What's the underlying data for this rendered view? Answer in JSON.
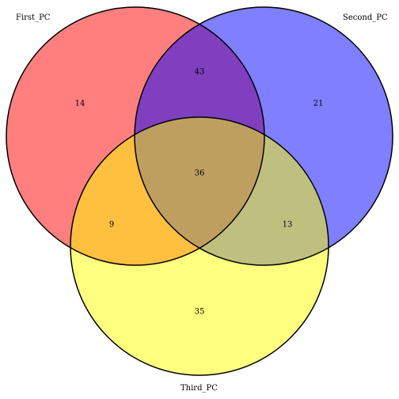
{
  "diagram_type": "venn",
  "sets": [
    {
      "id": "first",
      "name": "First_PC",
      "color": "#ff0000"
    },
    {
      "id": "second",
      "name": "Second_PC",
      "color": "#0000ff"
    },
    {
      "id": "third",
      "name": "Third_PC",
      "color": "#ffff00"
    }
  ],
  "regions": {
    "first_only": "14",
    "second_only": "21",
    "third_only": "35",
    "first_second": "43",
    "first_third": "9",
    "second_third": "13",
    "all_three": "36"
  },
  "fill_opacity": 0.5,
  "outline_color": "#000000"
}
